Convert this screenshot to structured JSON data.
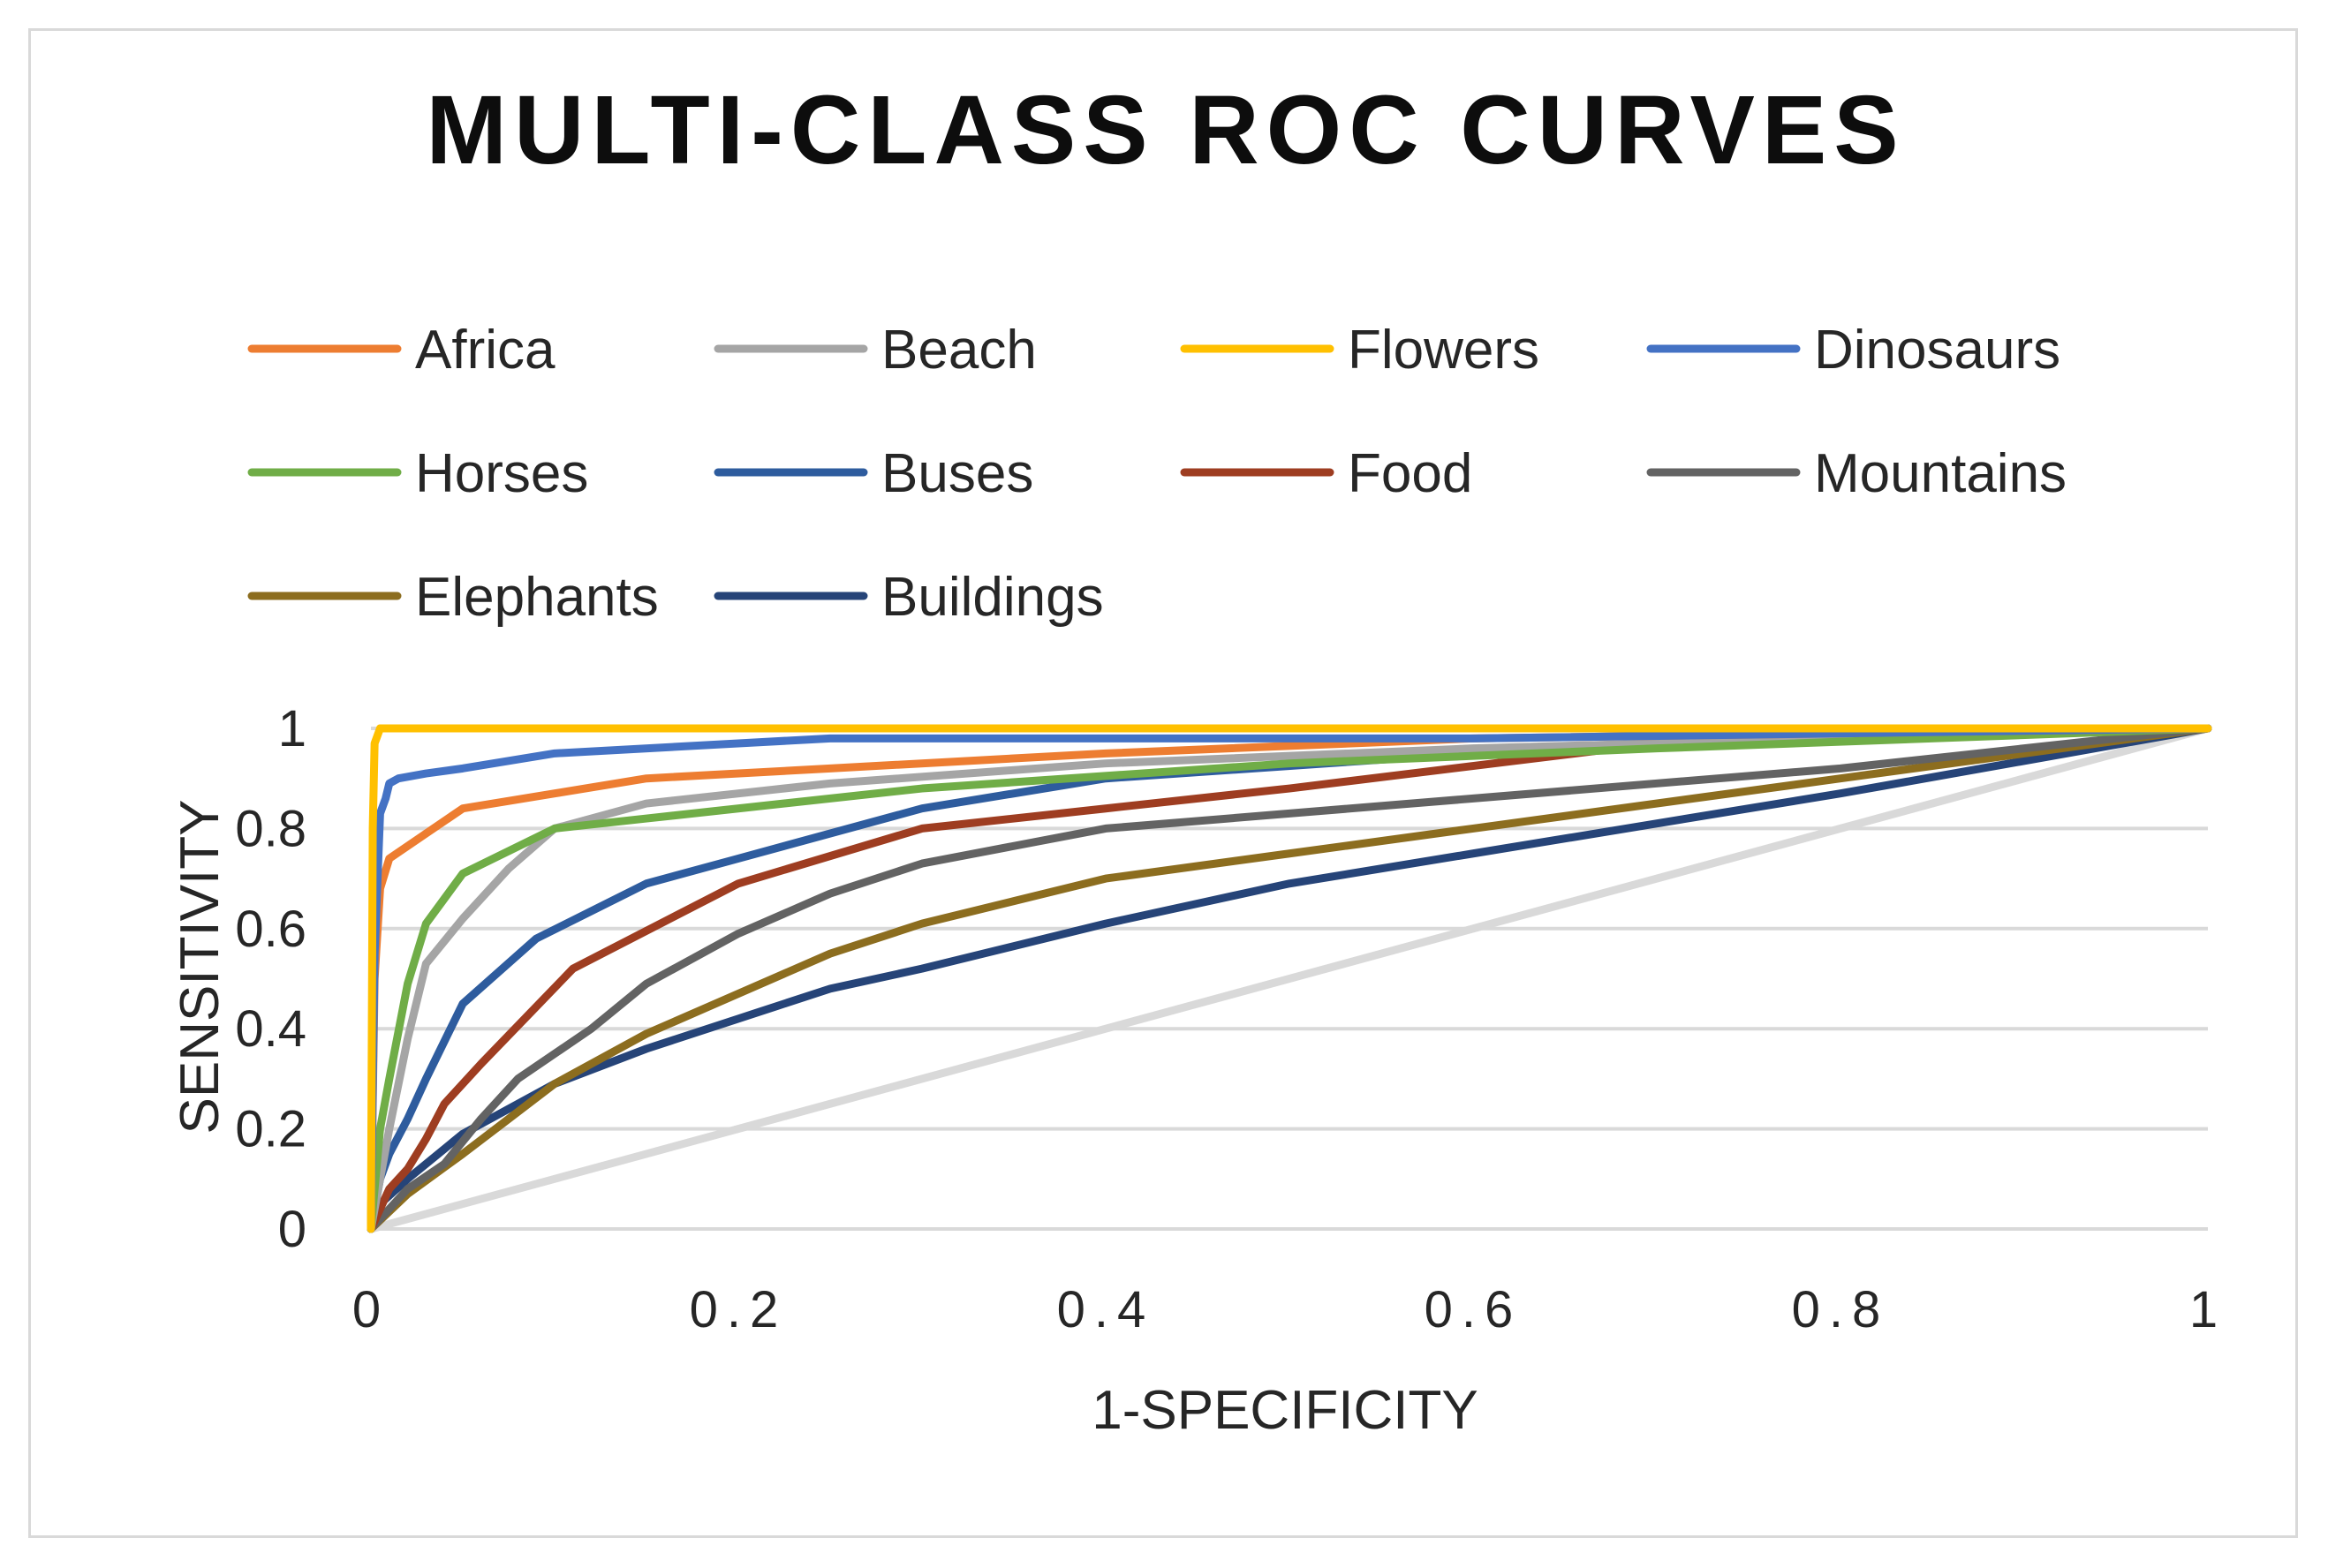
{
  "chart_data": {
    "type": "line",
    "title": "MULTI-CLASS ROC CURVES",
    "xlabel": "1-SPECIFICITY",
    "ylabel": "SENSITIVITY",
    "xlim": [
      0,
      1
    ],
    "ylim": [
      0,
      1
    ],
    "x_ticks": [
      "0",
      "0.2",
      "0.4",
      "0.6",
      "0.8",
      "1"
    ],
    "y_ticks": [
      "0",
      "0.2",
      "0.4",
      "0.6",
      "0.8",
      "1"
    ],
    "grid": "horizontal",
    "legend_position": "top",
    "reference_line": {
      "x": [
        0,
        1
      ],
      "y": [
        0,
        1
      ],
      "color": "#d9d9d9"
    },
    "series": [
      {
        "name": "Africa",
        "color": "#ed7d31",
        "x": [
          0,
          0.002,
          0.005,
          0.01,
          0.03,
          0.05,
          0.1,
          0.15,
          0.25,
          0.4,
          0.6,
          0.8,
          1
        ],
        "y": [
          0,
          0.5,
          0.68,
          0.74,
          0.79,
          0.84,
          0.87,
          0.9,
          0.92,
          0.95,
          0.98,
          0.99,
          1
        ]
      },
      {
        "name": "Beach",
        "color": "#a5a5a5",
        "x": [
          0,
          0.005,
          0.01,
          0.02,
          0.03,
          0.05,
          0.075,
          0.1,
          0.15,
          0.25,
          0.4,
          0.6,
          0.8,
          1
        ],
        "y": [
          0,
          0.1,
          0.2,
          0.38,
          0.53,
          0.62,
          0.72,
          0.8,
          0.85,
          0.89,
          0.93,
          0.96,
          0.98,
          1
        ]
      },
      {
        "name": "Flowers",
        "color": "#ffc000",
        "x": [
          0,
          0.001,
          0.002,
          0.005,
          0.01,
          0.2,
          1
        ],
        "y": [
          0,
          0.8,
          0.97,
          1,
          1,
          1,
          1
        ]
      },
      {
        "name": "Dinosaurs",
        "color": "#4472c4",
        "x": [
          0,
          0.002,
          0.005,
          0.008,
          0.01,
          0.015,
          0.03,
          0.05,
          0.1,
          0.2,
          0.25,
          0.4,
          0.6,
          1
        ],
        "y": [
          0,
          0.55,
          0.83,
          0.86,
          0.89,
          0.9,
          0.91,
          0.92,
          0.95,
          0.97,
          0.98,
          0.98,
          0.98,
          1
        ]
      },
      {
        "name": "Horses",
        "color": "#70ad47",
        "x": [
          0,
          0.005,
          0.01,
          0.02,
          0.03,
          0.05,
          0.1,
          0.15,
          0.3,
          0.5,
          0.7,
          1
        ],
        "y": [
          0,
          0.2,
          0.3,
          0.49,
          0.61,
          0.71,
          0.8,
          0.82,
          0.88,
          0.93,
          0.96,
          1
        ]
      },
      {
        "name": "Buses",
        "color": "#2e5c9e",
        "x": [
          0,
          0.005,
          0.01,
          0.02,
          0.03,
          0.05,
          0.09,
          0.15,
          0.2,
          0.3,
          0.4,
          0.6,
          0.8,
          1
        ],
        "y": [
          0,
          0.1,
          0.15,
          0.22,
          0.3,
          0.45,
          0.58,
          0.69,
          0.74,
          0.84,
          0.9,
          0.95,
          0.98,
          1
        ]
      },
      {
        "name": "Food",
        "color": "#9e3d21",
        "x": [
          0,
          0.01,
          0.02,
          0.03,
          0.04,
          0.06,
          0.11,
          0.2,
          0.3,
          0.4,
          0.5,
          0.7,
          0.8,
          1
        ],
        "y": [
          0,
          0.08,
          0.12,
          0.18,
          0.25,
          0.33,
          0.52,
          0.69,
          0.8,
          0.84,
          0.88,
          0.97,
          0.98,
          1
        ]
      },
      {
        "name": "Mountains",
        "color": "#636363",
        "x": [
          0,
          0.02,
          0.04,
          0.06,
          0.08,
          0.12,
          0.15,
          0.2,
          0.25,
          0.3,
          0.4,
          0.5,
          0.6,
          0.8,
          1
        ],
        "y": [
          0,
          0.08,
          0.13,
          0.22,
          0.3,
          0.4,
          0.49,
          0.59,
          0.67,
          0.73,
          0.8,
          0.83,
          0.86,
          0.92,
          1
        ]
      },
      {
        "name": "Elephants",
        "color": "#8c6d1f",
        "x": [
          0,
          0.02,
          0.05,
          0.075,
          0.1,
          0.15,
          0.2,
          0.25,
          0.3,
          0.4,
          0.5,
          0.6,
          0.8,
          1
        ],
        "y": [
          0,
          0.07,
          0.15,
          0.22,
          0.29,
          0.39,
          0.47,
          0.55,
          0.61,
          0.7,
          0.75,
          0.8,
          0.9,
          1
        ]
      },
      {
        "name": "Buildings",
        "color": "#264478",
        "x": [
          0,
          0.005,
          0.02,
          0.05,
          0.1,
          0.15,
          0.2,
          0.25,
          0.3,
          0.4,
          0.5,
          0.6,
          0.8,
          1
        ],
        "y": [
          0,
          0.05,
          0.1,
          0.19,
          0.29,
          0.36,
          0.42,
          0.48,
          0.52,
          0.61,
          0.69,
          0.75,
          0.87,
          1
        ]
      }
    ]
  }
}
